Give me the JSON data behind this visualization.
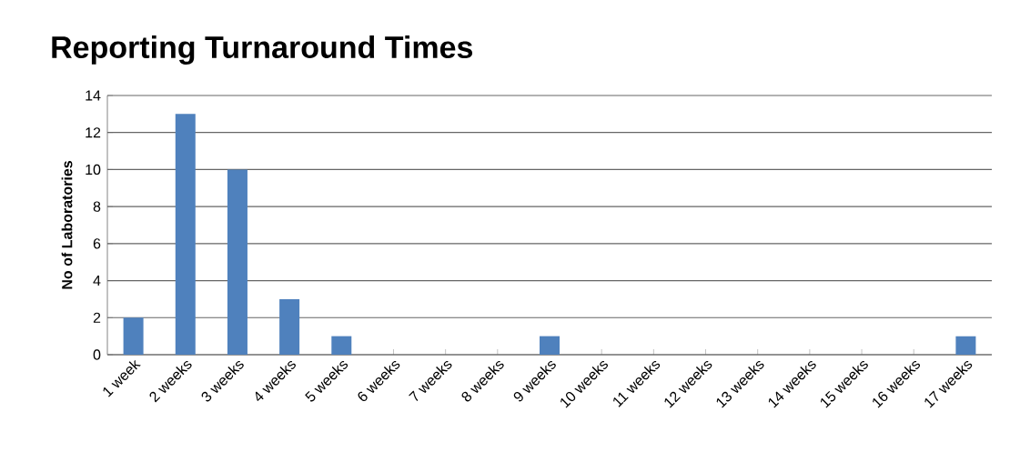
{
  "chart_data": {
    "type": "bar",
    "title": "Reporting Turnaround Times",
    "ylabel": "No of Laboratories",
    "categories": [
      "1 week",
      "2 weeks",
      "3 weeks",
      "4 weeks",
      "5 weeks",
      "6 weeks",
      "7 weeks",
      "8 weeks",
      "9 weeks",
      "10 weeks",
      "11 weeks",
      "12 weeks",
      "13 weeks",
      "14 weeks",
      "15 weeks",
      "16 weeks",
      "17 weeks"
    ],
    "values": [
      2,
      13,
      10,
      3,
      1,
      0,
      0,
      0,
      1,
      0,
      0,
      0,
      0,
      0,
      0,
      0,
      1
    ],
    "color": "#4f81bd",
    "ylim": [
      0,
      14
    ],
    "yticks": [
      0,
      2,
      4,
      6,
      8,
      10,
      12,
      14
    ],
    "grid": "y"
  }
}
